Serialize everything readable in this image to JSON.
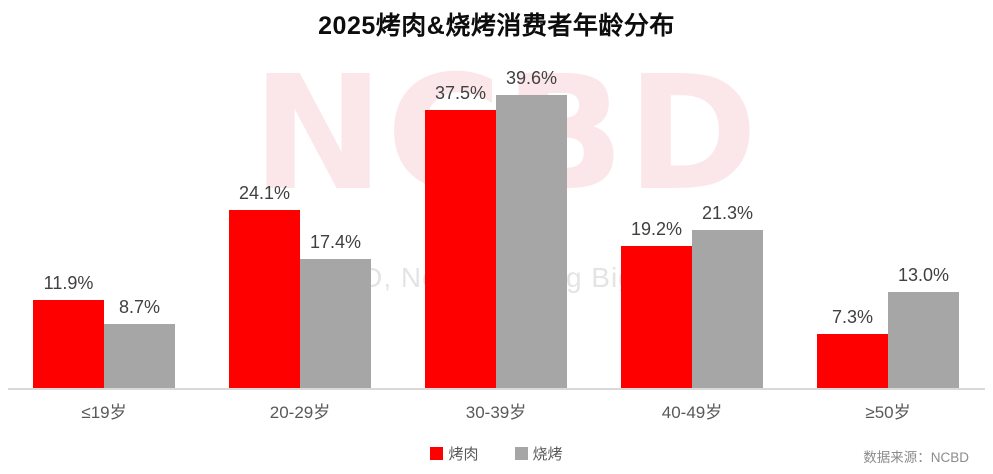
{
  "chart_data": {
    "type": "bar",
    "title": "2025烤肉&烧烤消费者年龄分布",
    "categories": [
      "≤19岁",
      "20-29岁",
      "30-39岁",
      "40-49岁",
      "≥50岁"
    ],
    "series": [
      {
        "name": "烤肉",
        "color": "#fe0000",
        "values": [
          11.9,
          24.1,
          37.5,
          19.2,
          7.3
        ]
      },
      {
        "name": "烧烤",
        "color": "#a6a6a6",
        "values": [
          8.7,
          17.4,
          39.6,
          21.3,
          13.0
        ]
      }
    ],
    "value_label_format": "{value}%",
    "xlabel": "",
    "ylabel": "",
    "ylim": [
      0,
      42
    ],
    "grid": false,
    "y_axis_visible": false,
    "legend_position": "bottom-center"
  },
  "watermarks": {
    "big": "NCBD",
    "small": "NCBD, New Catering Big Data"
  },
  "source": {
    "label": "数据来源：NCBD"
  },
  "colors": {
    "series_red": "#fe0000",
    "series_gray": "#a6a6a6",
    "axis_line": "#d9d9d9",
    "value_label": "#404040",
    "category_label": "#595959",
    "watermark_big": "#fbe7e9",
    "watermark_small": "#e4e4e4",
    "source_text": "#8c8c8c"
  }
}
